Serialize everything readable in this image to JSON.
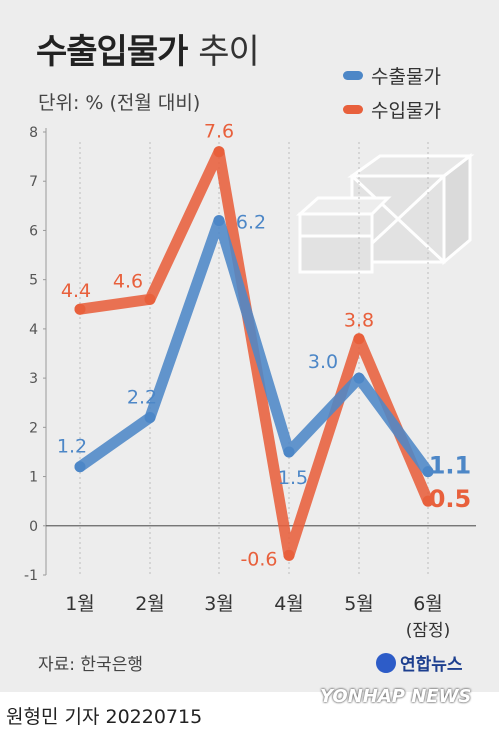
{
  "title": {
    "main": "수출입물가",
    "sub": "추이"
  },
  "unit_label": "단위: % (전월 대비)",
  "legend": [
    {
      "label": "수출물가",
      "color": "#4d87c7"
    },
    {
      "label": "수입물가",
      "color": "#e8603c"
    }
  ],
  "source": "자료: 한국은행",
  "logo_text": "연합뉴스",
  "watermark": "YONHAP NEWS",
  "byline": "원형민 기자  20220715",
  "chart_data": {
    "type": "line",
    "categories": [
      "1월",
      "2월",
      "3월",
      "4월",
      "5월",
      "6월"
    ],
    "category_note": "(잠정)",
    "ylim": [
      -1,
      8
    ],
    "yticks": [
      "-1",
      "0",
      "1",
      "2",
      "3",
      "4",
      "5",
      "6",
      "7",
      "8"
    ],
    "grid": false,
    "legend_position": "top-right",
    "series": [
      {
        "name": "수출물가",
        "color": "#4d87c7",
        "values": [
          1.2,
          2.2,
          6.2,
          1.5,
          3.0,
          1.1
        ],
        "labels": [
          "1.2",
          "2.2",
          "6.2",
          "1.5",
          "3.0",
          "1.1"
        ]
      },
      {
        "name": "수입물가",
        "color": "#e8603c",
        "values": [
          4.4,
          4.6,
          7.6,
          -0.6,
          3.8,
          0.5
        ],
        "labels": [
          "4.4",
          "4.6",
          "7.6",
          "-0.6",
          "3.8",
          "0.5"
        ]
      }
    ]
  }
}
